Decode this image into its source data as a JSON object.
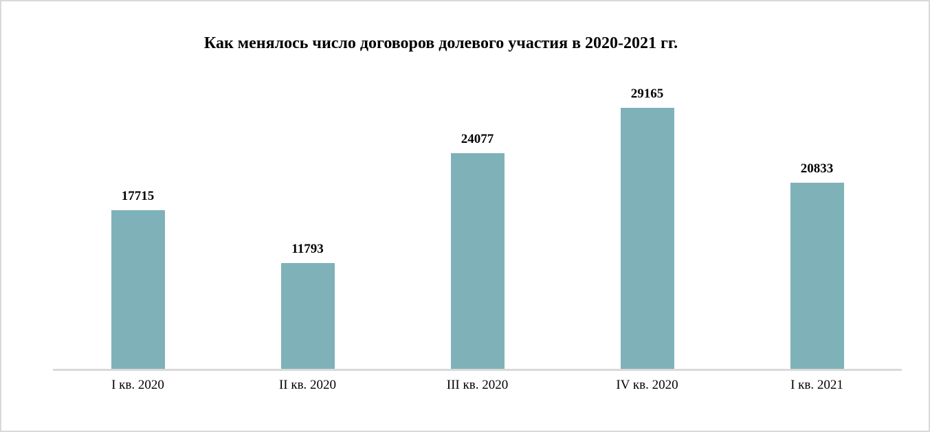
{
  "chart_data": {
    "type": "bar",
    "title": "Как менялось число договоров долевого участия в 2020-2021 гг.",
    "categories": [
      "I кв. 2020",
      "II кв. 2020",
      "III кв. 2020",
      "IV кв. 2020",
      "I кв. 2021"
    ],
    "values": [
      17715,
      11793,
      24077,
      29165,
      20833
    ],
    "xlabel": "",
    "ylabel": "",
    "y_axis_visible": false,
    "grid": false,
    "legend": false,
    "data_labels": true,
    "colors": {
      "bar": "#7FB2B8",
      "axis_line": "#D9D9D9",
      "text": "#000000",
      "background": "#FFFFFF",
      "frame_border": "#D9D9D9"
    }
  }
}
